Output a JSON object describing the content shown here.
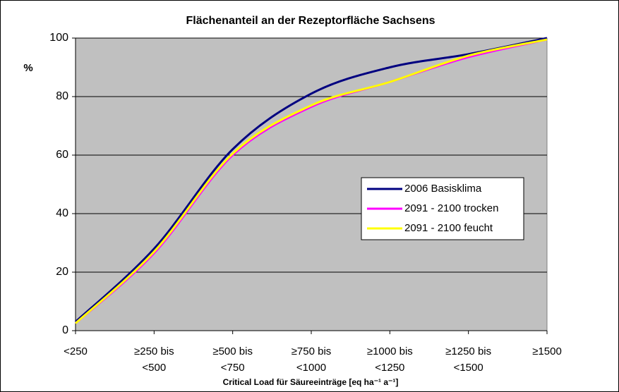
{
  "chart_data": {
    "type": "line",
    "title": "Flächenanteil an der Rezeptorfläche Sachsens",
    "y_label": "%",
    "x_label": "Critical Load für Säureeinträge [eq ha⁻¹ a⁻¹]",
    "categories": [
      "<250",
      "≥250 bis\n<500",
      "≥500 bis\n<750",
      "≥750 bis\n<1000",
      "≥1000 bis\n<1250",
      "≥1250 bis\n<1500",
      "≥1500"
    ],
    "series": [
      {
        "name": "2006 Basisklima",
        "color": "#000080",
        "values": [
          3,
          28,
          62,
          81,
          90,
          94.5,
          100
        ]
      },
      {
        "name": "2091 - 2100 trocken",
        "color": "#ff00ff",
        "values": [
          2.5,
          26.5,
          60,
          76.5,
          85,
          93.5,
          99.5
        ]
      },
      {
        "name": "2091 - 2100 feucht",
        "color": "#ffff00",
        "values": [
          2.5,
          27,
          60.5,
          77,
          85,
          94,
          99.5
        ]
      }
    ],
    "ylim": [
      0,
      100
    ],
    "yticks": [
      0,
      20,
      40,
      60,
      80,
      100
    ],
    "grid": true
  }
}
